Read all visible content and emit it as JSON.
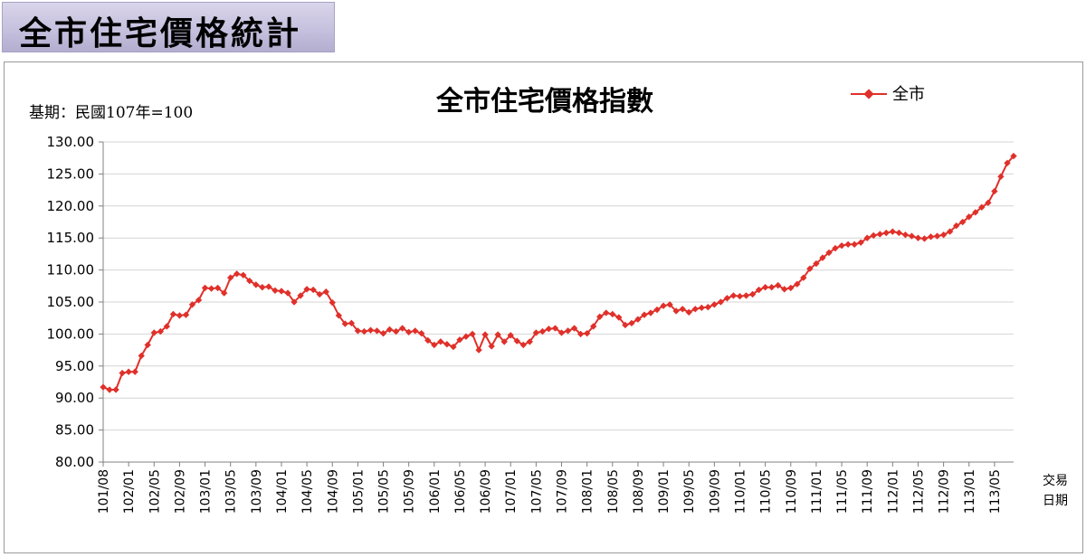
{
  "page": {
    "banner_title": "全市住宅價格統計"
  },
  "chart_data": {
    "type": "line",
    "title": "全市住宅價格指數",
    "base_note": "基期：民國107年=100",
    "xlabel": "交易\n日期",
    "xlabel_line1": "交易",
    "xlabel_line2": "日期",
    "ylabel": "",
    "ylim": [
      80,
      130
    ],
    "yticks": [
      "80.00",
      "85.00",
      "90.00",
      "95.00",
      "100.00",
      "105.00",
      "110.00",
      "115.00",
      "120.00",
      "125.00",
      "130.00"
    ],
    "xtick_labels": [
      "101/08",
      "102/01",
      "102/05",
      "102/09",
      "103/01",
      "103/05",
      "103/09",
      "104/01",
      "104/05",
      "104/09",
      "105/01",
      "105/05",
      "105/09",
      "106/01",
      "106/05",
      "106/09",
      "107/01",
      "107/05",
      "107/09",
      "108/01",
      "108/05",
      "108/09",
      "109/01",
      "109/05",
      "109/09",
      "110/01",
      "110/05",
      "110/09",
      "111/01",
      "111/05",
      "111/09",
      "112/01",
      "112/05",
      "112/09",
      "113/01",
      "113/05"
    ],
    "grid": "horizontal",
    "legend_position": "top-right",
    "colors": {
      "series": "#e0302a",
      "grid": "#d4d4d4",
      "axis": "#808080"
    },
    "series": [
      {
        "name": "全市",
        "start_month": "101/08",
        "values": [
          91.7,
          91.3,
          91.3,
          93.9,
          94.1,
          94.1,
          96.6,
          98.3,
          100.2,
          100.4,
          101.2,
          103.1,
          102.9,
          103.0,
          104.6,
          105.3,
          107.2,
          107.1,
          107.2,
          106.4,
          108.8,
          109.4,
          109.2,
          108.3,
          107.7,
          107.3,
          107.4,
          106.8,
          106.7,
          106.4,
          105.0,
          106.0,
          107.0,
          106.9,
          106.2,
          106.6,
          104.9,
          102.9,
          101.6,
          101.7,
          100.5,
          100.4,
          100.6,
          100.5,
          100.1,
          100.7,
          100.4,
          100.9,
          100.3,
          100.5,
          100.1,
          99.0,
          98.3,
          98.8,
          98.4,
          98.0,
          99.1,
          99.6,
          100.0,
          97.5,
          99.9,
          98.1,
          99.9,
          98.8,
          99.8,
          98.9,
          98.3,
          98.8,
          100.2,
          100.4,
          100.8,
          100.9,
          100.2,
          100.5,
          100.9,
          100.0,
          100.1,
          101.2,
          102.7,
          103.3,
          103.1,
          102.6,
          101.4,
          101.7,
          102.3,
          103.0,
          103.3,
          103.8,
          104.4,
          104.6,
          103.6,
          103.9,
          103.4,
          103.9,
          104.1,
          104.2,
          104.6,
          105.0,
          105.6,
          106.0,
          105.9,
          106.0,
          106.2,
          106.9,
          107.3,
          107.3,
          107.6,
          107.0,
          107.2,
          107.8,
          108.8,
          110.2,
          111.0,
          111.9,
          112.7,
          113.4,
          113.8,
          114.0,
          114.0,
          114.3,
          115.0,
          115.4,
          115.6,
          115.8,
          116.0,
          115.8,
          115.5,
          115.3,
          115.0,
          114.9,
          115.2,
          115.3,
          115.5,
          116.0,
          116.9,
          117.5,
          118.3,
          119.0,
          119.8,
          120.5,
          122.3,
          124.6,
          126.7,
          127.8
        ]
      }
    ]
  }
}
